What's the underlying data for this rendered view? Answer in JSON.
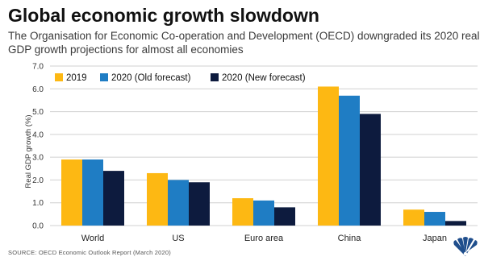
{
  "title": "Global economic growth slowdown",
  "subtitle": "The Organisation for Economic Co-operation and Development (OECD) downgraded its 2020 real GDP growth projections for almost all economies",
  "source": "SOURCE: OECD Economic Outlook Report (March 2020)",
  "colors": {
    "2019": "#fdb813",
    "2020_old": "#1f7dc4",
    "2020_new": "#0d1b3e",
    "gridline": "#d0d0d0"
  },
  "logo_icon": "nbc-peacock-icon",
  "chart_data": {
    "type": "bar",
    "categories": [
      "World",
      "US",
      "Euro area",
      "China",
      "Japan"
    ],
    "series": [
      {
        "name": "2019",
        "color": "#fdb813",
        "values": [
          2.9,
          2.3,
          1.2,
          6.1,
          0.7
        ]
      },
      {
        "name": "2020 (Old forecast)",
        "color": "#1f7dc4",
        "values": [
          2.9,
          2.0,
          1.1,
          5.7,
          0.6
        ]
      },
      {
        "name": "2020 (New forecast)",
        "color": "#0d1b3e",
        "values": [
          2.4,
          1.9,
          0.8,
          4.9,
          0.2
        ]
      }
    ],
    "ylabel": "Real GDP growth (%)",
    "xlabel": "",
    "ylim": [
      0,
      7
    ],
    "yticks": [
      "0.0",
      "1.0",
      "2.0",
      "3.0",
      "4.0",
      "5.0",
      "6.0",
      "7.0"
    ],
    "grid": true,
    "legend": "top-left"
  }
}
